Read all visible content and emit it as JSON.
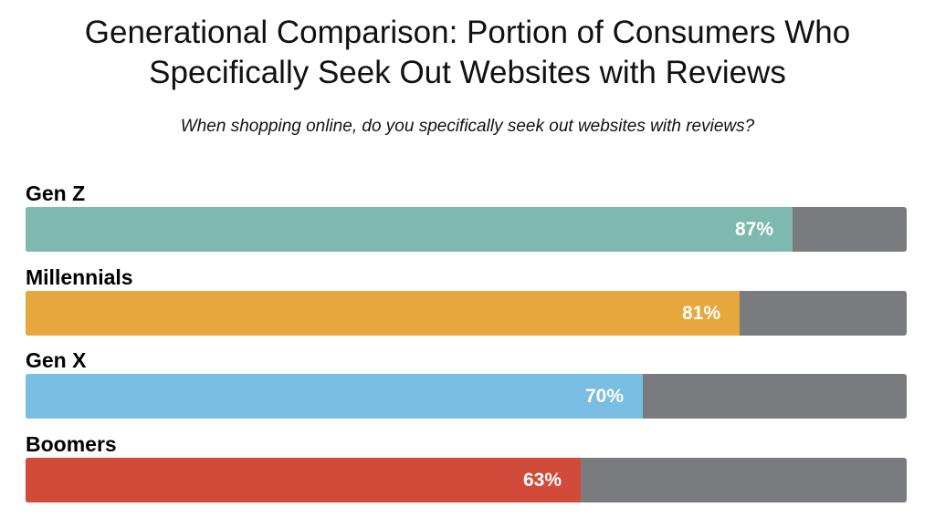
{
  "colors": {
    "remainder": "#7a7b7f",
    "gen_z": "#7db9ad",
    "millennials": "#e6a83c",
    "gen_x": "#79bee2",
    "boomers": "#d24a3a"
  },
  "chart_data": {
    "type": "bar",
    "orientation": "horizontal",
    "title_lines": [
      "Generational Comparison: Portion of Consumers Who",
      "Specifically Seek Out Websites with Reviews"
    ],
    "subtitle": "When shopping online, do you specifically seek out websites with reviews?",
    "xlim": [
      0,
      100
    ],
    "grid": false,
    "legend": "none",
    "categories": [
      "Gen Z",
      "Millennials",
      "Gen X",
      "Boomers"
    ],
    "values": [
      87,
      81,
      70,
      63
    ],
    "value_labels": [
      "87%",
      "81%",
      "70%",
      "63%"
    ],
    "bar_colors": [
      "#7db9ad",
      "#e6a83c",
      "#79bee2",
      "#d24a3a"
    ]
  }
}
